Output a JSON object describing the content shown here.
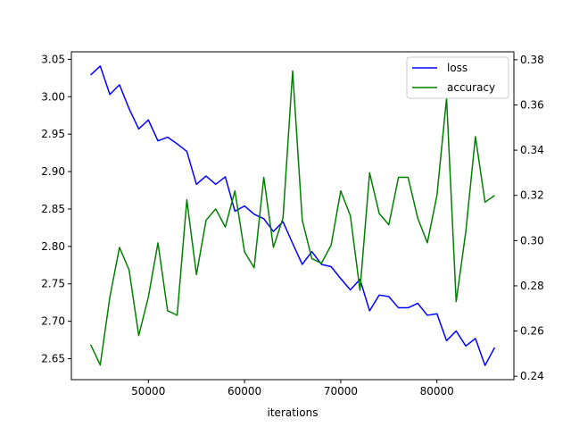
{
  "chart_data": {
    "type": "line",
    "xlabel": "iterations",
    "xlim": [
      42000,
      88000
    ],
    "xticks": [
      50000,
      60000,
      70000,
      80000
    ],
    "ylim_left": [
      2.622,
      3.06
    ],
    "yticks_left": [
      2.65,
      2.7,
      2.75,
      2.8,
      2.85,
      2.9,
      2.95,
      3.0,
      3.05
    ],
    "ylim_right": [
      0.2385,
      0.3835
    ],
    "yticks_right": [
      0.24,
      0.26,
      0.28,
      0.3,
      0.32,
      0.34,
      0.36,
      0.38
    ],
    "legend": {
      "position": "top-right"
    },
    "x": [
      44000,
      45000,
      46000,
      47000,
      48000,
      49000,
      50000,
      51000,
      52000,
      53000,
      54000,
      55000,
      56000,
      57000,
      58000,
      59000,
      60000,
      61000,
      62000,
      63000,
      64000,
      65000,
      66000,
      67000,
      68000,
      69000,
      70000,
      71000,
      72000,
      73000,
      74000,
      75000,
      76000,
      77000,
      78000,
      79000,
      80000,
      81000,
      82000,
      83000,
      84000,
      85000,
      86000
    ],
    "series": [
      {
        "name": "loss",
        "color": "#0000ff",
        "axis": "left",
        "values": [
          3.029,
          3.041,
          3.003,
          3.016,
          2.984,
          2.957,
          2.969,
          2.941,
          2.946,
          2.937,
          2.927,
          2.883,
          2.894,
          2.883,
          2.893,
          2.847,
          2.854,
          2.843,
          2.837,
          2.82,
          2.833,
          2.804,
          2.776,
          2.793,
          2.776,
          2.773,
          2.757,
          2.742,
          2.756,
          2.714,
          2.735,
          2.733,
          2.718,
          2.718,
          2.724,
          2.708,
          2.71,
          2.674,
          2.687,
          2.667,
          2.677,
          2.641,
          2.665
        ]
      },
      {
        "name": "accuracy",
        "color": "#008000",
        "axis": "right",
        "values": [
          0.254,
          0.245,
          0.275,
          0.297,
          0.287,
          0.258,
          0.275,
          0.299,
          0.269,
          0.267,
          0.318,
          0.285,
          0.309,
          0.314,
          0.306,
          0.322,
          0.295,
          0.288,
          0.328,
          0.297,
          0.31,
          0.375,
          0.309,
          0.292,
          0.29,
          0.298,
          0.322,
          0.311,
          0.278,
          0.33,
          0.312,
          0.307,
          0.328,
          0.328,
          0.31,
          0.299,
          0.32,
          0.363,
          0.273,
          0.304,
          0.346,
          0.317,
          0.32
        ]
      }
    ]
  }
}
